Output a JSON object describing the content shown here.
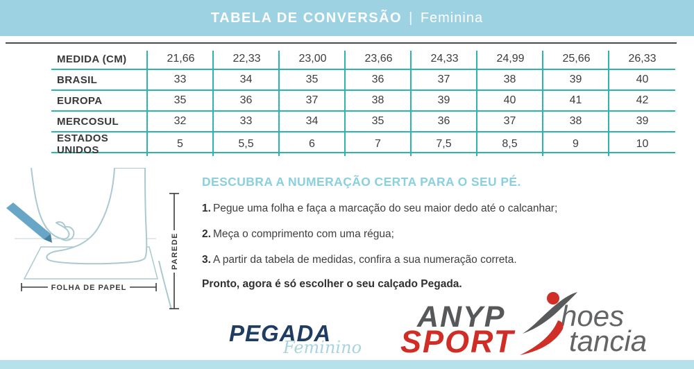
{
  "header": {
    "title": "TABELA DE CONVERSÃO",
    "separator": "|",
    "subtitle": "Feminina"
  },
  "table": {
    "rows": [
      {
        "label": "MEDIDA (CM)",
        "values": [
          "21,66",
          "22,33",
          "23,00",
          "23,66",
          "24,33",
          "24,99",
          "25,66",
          "26,33"
        ]
      },
      {
        "label": "BRASIL",
        "values": [
          "33",
          "34",
          "35",
          "36",
          "37",
          "38",
          "39",
          "40"
        ]
      },
      {
        "label": "EUROPA",
        "values": [
          "35",
          "36",
          "37",
          "38",
          "39",
          "40",
          "41",
          "42"
        ]
      },
      {
        "label": "MERCOSUL",
        "values": [
          "32",
          "33",
          "34",
          "35",
          "36",
          "37",
          "38",
          "39"
        ]
      },
      {
        "label": "ESTADOS UNIDOS",
        "values": [
          "5",
          "5,5",
          "6",
          "7",
          "7,5",
          "8,5",
          "9",
          "10"
        ]
      }
    ]
  },
  "instructions": {
    "heading": "DESCUBRA A NUMERAÇÃO CERTA PARA O SEU PÉ.",
    "steps": [
      {
        "num": "1.",
        "text": "Pegue uma folha e faça a marcação do seu maior dedo até o calcanhar;"
      },
      {
        "num": "2.",
        "text": "Meça o comprimento com uma régua;"
      },
      {
        "num": "3.",
        "text": "A partir da tabela de medidas, confira a sua numeração correta."
      }
    ],
    "closing": "Pronto, agora é só escolher o seu calçado Pegada."
  },
  "illustration": {
    "paper_label": "FOLHA DE PAPEL",
    "wall_label": "PAREDE"
  },
  "logos": {
    "pegada": {
      "name": "PEGADA",
      "line": "Feminino"
    },
    "anypsport": {
      "word1": "ANYP",
      "word1_suffix": "hoes",
      "word2": "SPORT",
      "word2_suffix": "tancia"
    }
  },
  "colors": {
    "header_bg": "#9dd2e2",
    "bottom_bar": "#b6e1eb",
    "table_line_teal": "#2cb5af",
    "top_rule_dark": "#4a4a4a",
    "heading_blue": "#8ad0de",
    "pegada_navy": "#1f3c62",
    "feminino_blue": "#a7d4de",
    "anyp_gray": "#57585a",
    "sport_red": "#cf2d26",
    "illustration_stroke": "#a9c8d0",
    "pencil_blue": "#68a6c7"
  }
}
